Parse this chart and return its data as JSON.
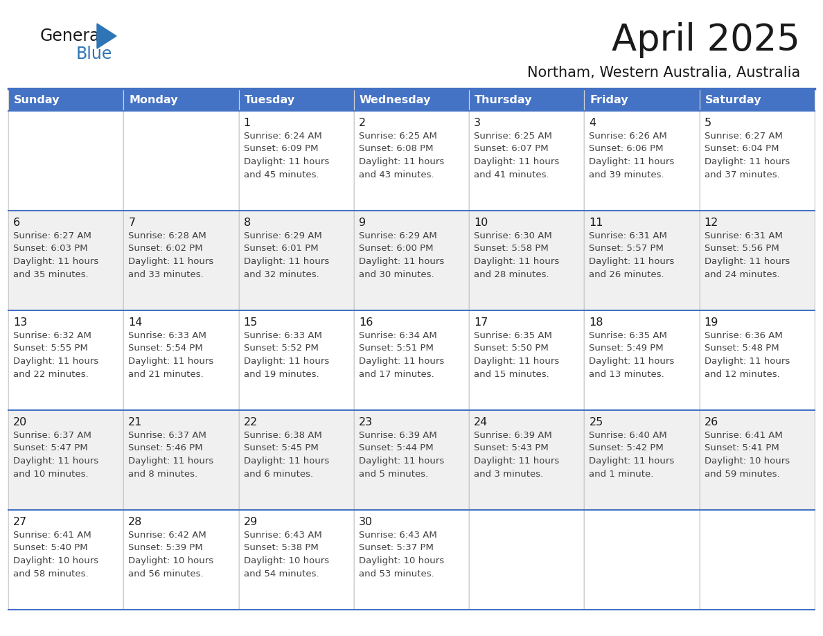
{
  "title": "April 2025",
  "subtitle": "Northam, Western Australia, Australia",
  "header_bg_color": "#4472C4",
  "header_text_color": "#FFFFFF",
  "border_color": "#4472C4",
  "row_divider_color": "#4472C4",
  "cell_border_color": "#C0C0C0",
  "title_color": "#1a1a1a",
  "subtitle_color": "#1a1a1a",
  "cell_text_color": "#404040",
  "day_num_color": "#1a1a1a",
  "logo_text_color": "#1a1a1a",
  "logo_blue_color": "#2E75B6",
  "day_headers": [
    "Sunday",
    "Monday",
    "Tuesday",
    "Wednesday",
    "Thursday",
    "Friday",
    "Saturday"
  ],
  "weeks": [
    [
      {
        "day": "",
        "lines": []
      },
      {
        "day": "",
        "lines": []
      },
      {
        "day": "1",
        "lines": [
          "Sunrise: 6:24 AM",
          "Sunset: 6:09 PM",
          "Daylight: 11 hours",
          "and 45 minutes."
        ]
      },
      {
        "day": "2",
        "lines": [
          "Sunrise: 6:25 AM",
          "Sunset: 6:08 PM",
          "Daylight: 11 hours",
          "and 43 minutes."
        ]
      },
      {
        "day": "3",
        "lines": [
          "Sunrise: 6:25 AM",
          "Sunset: 6:07 PM",
          "Daylight: 11 hours",
          "and 41 minutes."
        ]
      },
      {
        "day": "4",
        "lines": [
          "Sunrise: 6:26 AM",
          "Sunset: 6:06 PM",
          "Daylight: 11 hours",
          "and 39 minutes."
        ]
      },
      {
        "day": "5",
        "lines": [
          "Sunrise: 6:27 AM",
          "Sunset: 6:04 PM",
          "Daylight: 11 hours",
          "and 37 minutes."
        ]
      }
    ],
    [
      {
        "day": "6",
        "lines": [
          "Sunrise: 6:27 AM",
          "Sunset: 6:03 PM",
          "Daylight: 11 hours",
          "and 35 minutes."
        ]
      },
      {
        "day": "7",
        "lines": [
          "Sunrise: 6:28 AM",
          "Sunset: 6:02 PM",
          "Daylight: 11 hours",
          "and 33 minutes."
        ]
      },
      {
        "day": "8",
        "lines": [
          "Sunrise: 6:29 AM",
          "Sunset: 6:01 PM",
          "Daylight: 11 hours",
          "and 32 minutes."
        ]
      },
      {
        "day": "9",
        "lines": [
          "Sunrise: 6:29 AM",
          "Sunset: 6:00 PM",
          "Daylight: 11 hours",
          "and 30 minutes."
        ]
      },
      {
        "day": "10",
        "lines": [
          "Sunrise: 6:30 AM",
          "Sunset: 5:58 PM",
          "Daylight: 11 hours",
          "and 28 minutes."
        ]
      },
      {
        "day": "11",
        "lines": [
          "Sunrise: 6:31 AM",
          "Sunset: 5:57 PM",
          "Daylight: 11 hours",
          "and 26 minutes."
        ]
      },
      {
        "day": "12",
        "lines": [
          "Sunrise: 6:31 AM",
          "Sunset: 5:56 PM",
          "Daylight: 11 hours",
          "and 24 minutes."
        ]
      }
    ],
    [
      {
        "day": "13",
        "lines": [
          "Sunrise: 6:32 AM",
          "Sunset: 5:55 PM",
          "Daylight: 11 hours",
          "and 22 minutes."
        ]
      },
      {
        "day": "14",
        "lines": [
          "Sunrise: 6:33 AM",
          "Sunset: 5:54 PM",
          "Daylight: 11 hours",
          "and 21 minutes."
        ]
      },
      {
        "day": "15",
        "lines": [
          "Sunrise: 6:33 AM",
          "Sunset: 5:52 PM",
          "Daylight: 11 hours",
          "and 19 minutes."
        ]
      },
      {
        "day": "16",
        "lines": [
          "Sunrise: 6:34 AM",
          "Sunset: 5:51 PM",
          "Daylight: 11 hours",
          "and 17 minutes."
        ]
      },
      {
        "day": "17",
        "lines": [
          "Sunrise: 6:35 AM",
          "Sunset: 5:50 PM",
          "Daylight: 11 hours",
          "and 15 minutes."
        ]
      },
      {
        "day": "18",
        "lines": [
          "Sunrise: 6:35 AM",
          "Sunset: 5:49 PM",
          "Daylight: 11 hours",
          "and 13 minutes."
        ]
      },
      {
        "day": "19",
        "lines": [
          "Sunrise: 6:36 AM",
          "Sunset: 5:48 PM",
          "Daylight: 11 hours",
          "and 12 minutes."
        ]
      }
    ],
    [
      {
        "day": "20",
        "lines": [
          "Sunrise: 6:37 AM",
          "Sunset: 5:47 PM",
          "Daylight: 11 hours",
          "and 10 minutes."
        ]
      },
      {
        "day": "21",
        "lines": [
          "Sunrise: 6:37 AM",
          "Sunset: 5:46 PM",
          "Daylight: 11 hours",
          "and 8 minutes."
        ]
      },
      {
        "day": "22",
        "lines": [
          "Sunrise: 6:38 AM",
          "Sunset: 5:45 PM",
          "Daylight: 11 hours",
          "and 6 minutes."
        ]
      },
      {
        "day": "23",
        "lines": [
          "Sunrise: 6:39 AM",
          "Sunset: 5:44 PM",
          "Daylight: 11 hours",
          "and 5 minutes."
        ]
      },
      {
        "day": "24",
        "lines": [
          "Sunrise: 6:39 AM",
          "Sunset: 5:43 PM",
          "Daylight: 11 hours",
          "and 3 minutes."
        ]
      },
      {
        "day": "25",
        "lines": [
          "Sunrise: 6:40 AM",
          "Sunset: 5:42 PM",
          "Daylight: 11 hours",
          "and 1 minute."
        ]
      },
      {
        "day": "26",
        "lines": [
          "Sunrise: 6:41 AM",
          "Sunset: 5:41 PM",
          "Daylight: 10 hours",
          "and 59 minutes."
        ]
      }
    ],
    [
      {
        "day": "27",
        "lines": [
          "Sunrise: 6:41 AM",
          "Sunset: 5:40 PM",
          "Daylight: 10 hours",
          "and 58 minutes."
        ]
      },
      {
        "day": "28",
        "lines": [
          "Sunrise: 6:42 AM",
          "Sunset: 5:39 PM",
          "Daylight: 10 hours",
          "and 56 minutes."
        ]
      },
      {
        "day": "29",
        "lines": [
          "Sunrise: 6:43 AM",
          "Sunset: 5:38 PM",
          "Daylight: 10 hours",
          "and 54 minutes."
        ]
      },
      {
        "day": "30",
        "lines": [
          "Sunrise: 6:43 AM",
          "Sunset: 5:37 PM",
          "Daylight: 10 hours",
          "and 53 minutes."
        ]
      },
      {
        "day": "",
        "lines": []
      },
      {
        "day": "",
        "lines": []
      },
      {
        "day": "",
        "lines": []
      }
    ]
  ]
}
